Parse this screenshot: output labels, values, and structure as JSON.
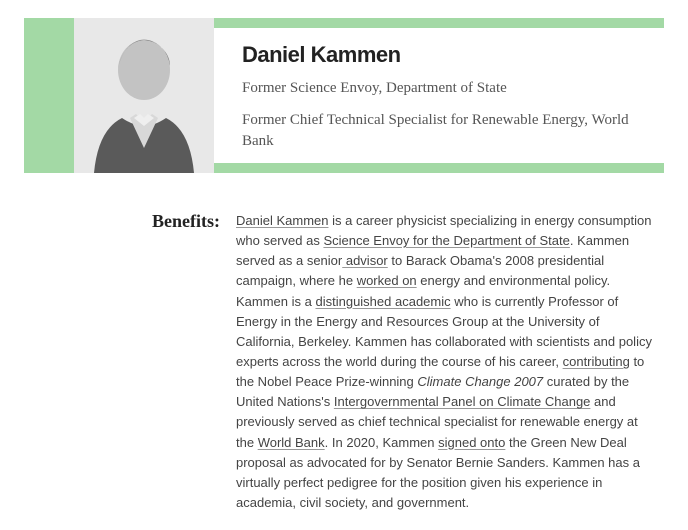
{
  "colors": {
    "band": "#a3d9a5",
    "page_bg": "#ffffff",
    "heading_text": "#222222",
    "subheading_text": "#555555",
    "body_text": "#444444"
  },
  "typography": {
    "name_fontfamily": "Arial",
    "name_fontsize_pt": 17,
    "name_fontweight": 900,
    "role_fontfamily": "Georgia",
    "role_fontsize_pt": 11,
    "label_fontfamily": "Georgia",
    "label_fontsize_pt": 14,
    "label_fontweight": 700,
    "body_fontfamily": "Arial",
    "body_fontsize_pt": 10,
    "body_lineheight": 1.55
  },
  "header": {
    "name": "Daniel Kammen",
    "role1": "Former Science Envoy, Department of State",
    "role2": "Former Chief Technical Specialist for Renewable Energy, World Bank",
    "photo_alt": "grayscale-headshot"
  },
  "section": {
    "label": "Benefits:",
    "paragraph_parts": [
      {
        "t": "link",
        "v": "Daniel Kammen"
      },
      {
        "t": "text",
        "v": " is a career physicist specializing in energy consumption who served as "
      },
      {
        "t": "link",
        "v": "Science Envoy for the Department of State"
      },
      {
        "t": "text",
        "v": ". Kammen served as a senior"
      },
      {
        "t": "link",
        "v": " advisor"
      },
      {
        "t": "text",
        "v": " to Barack Obama's 2008 presidential campaign, where he "
      },
      {
        "t": "link",
        "v": "worked on"
      },
      {
        "t": "text",
        "v": " energy and environmental policy. Kammen is a "
      },
      {
        "t": "link",
        "v": "distinguished academic"
      },
      {
        "t": "text",
        "v": " who is currently Professor of Energy in the Energy and Resources Group at the University of California, Berkeley. Kammen has collaborated with scientists and policy experts across the world during the course of his career, "
      },
      {
        "t": "link",
        "v": "contributing"
      },
      {
        "t": "text",
        "v": " to the Nobel Peace Prize-winning "
      },
      {
        "t": "em",
        "v": "Climate Change 2007"
      },
      {
        "t": "text",
        "v": " curated by the United Nations's "
      },
      {
        "t": "link",
        "v": "Intergovernmental Panel on Climate Change"
      },
      {
        "t": "text",
        "v": " and previously served as chief technical specialist for renewable energy at the "
      },
      {
        "t": "link",
        "v": "World Bank"
      },
      {
        "t": "text",
        "v": ". In 2020, Kammen "
      },
      {
        "t": "link",
        "v": "signed onto"
      },
      {
        "t": "text",
        "v": " the Green New Deal proposal as advocated for by Senator Bernie Sanders. Kammen has a virtually perfect pedigree for the position given his experience in academia, civil society, and government."
      }
    ]
  }
}
